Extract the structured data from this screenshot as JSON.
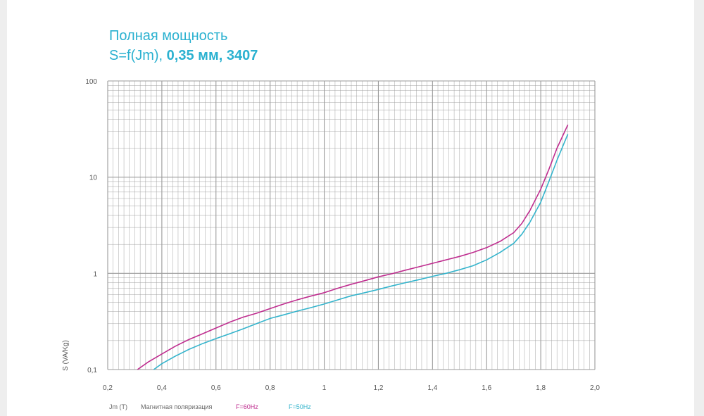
{
  "title": {
    "line1": "Полная мощность",
    "line2_plain": "S=f(Jm), ",
    "line2_bold": "0,35 мм, 3407"
  },
  "colors": {
    "title": "#2bb1d0",
    "series_60": "#bf2d8f",
    "series_50": "#34b4cc",
    "grid": "#9a9a9a"
  },
  "legend_labels": {
    "xlabel_unit": "Jm (T)",
    "xlabel_text": "Магнитная поляризация",
    "series_60": "F=60Hz",
    "series_50": "F=50Hz"
  },
  "chart_data": {
    "type": "line",
    "title": "Полная мощность S=f(Jm), 0,35 мм, 3407",
    "xlabel": "Jm (T)  Магнитная поляризация",
    "ylabel": "S (VA/Kg)",
    "xlim": [
      0.2,
      2.0
    ],
    "ylim": [
      0.1,
      100
    ],
    "yscale": "log",
    "grid": true,
    "legend_placement": "bottom",
    "x_tick_labels": [
      "0,2",
      "0,4",
      "0,6",
      "0,8",
      "1",
      "1,2",
      "1,4",
      "1,6",
      "1,8",
      "2,0"
    ],
    "y_tick_labels": [
      "0,1",
      "1",
      "10",
      "100"
    ],
    "series": [
      {
        "name": "F=60Hz",
        "x": [
          0.31,
          0.35,
          0.4,
          0.45,
          0.5,
          0.55,
          0.6,
          0.65,
          0.7,
          0.75,
          0.8,
          0.85,
          0.9,
          0.95,
          1.0,
          1.05,
          1.1,
          1.15,
          1.2,
          1.25,
          1.3,
          1.35,
          1.4,
          1.45,
          1.5,
          1.55,
          1.6,
          1.65,
          1.7,
          1.73,
          1.76,
          1.8,
          1.83,
          1.86,
          1.9
        ],
        "y": [
          0.1,
          0.12,
          0.145,
          0.175,
          0.205,
          0.235,
          0.27,
          0.31,
          0.35,
          0.385,
          0.43,
          0.48,
          0.53,
          0.58,
          0.63,
          0.7,
          0.77,
          0.84,
          0.92,
          0.99,
          1.08,
          1.17,
          1.27,
          1.38,
          1.5,
          1.65,
          1.85,
          2.15,
          2.65,
          3.3,
          4.5,
          7.5,
          12,
          20,
          35
        ]
      },
      {
        "name": "F=50Hz",
        "x": [
          0.37,
          0.4,
          0.45,
          0.5,
          0.55,
          0.6,
          0.65,
          0.7,
          0.75,
          0.8,
          0.85,
          0.9,
          0.95,
          1.0,
          1.05,
          1.1,
          1.15,
          1.2,
          1.25,
          1.3,
          1.35,
          1.4,
          1.45,
          1.5,
          1.55,
          1.6,
          1.65,
          1.7,
          1.73,
          1.76,
          1.8,
          1.83,
          1.86,
          1.9
        ],
        "y": [
          0.1,
          0.115,
          0.138,
          0.162,
          0.186,
          0.21,
          0.235,
          0.265,
          0.3,
          0.34,
          0.37,
          0.405,
          0.44,
          0.48,
          0.53,
          0.585,
          0.63,
          0.68,
          0.74,
          0.8,
          0.86,
          0.93,
          1.0,
          1.09,
          1.2,
          1.38,
          1.65,
          2.05,
          2.55,
          3.4,
          5.5,
          9,
          15,
          28
        ]
      }
    ]
  }
}
